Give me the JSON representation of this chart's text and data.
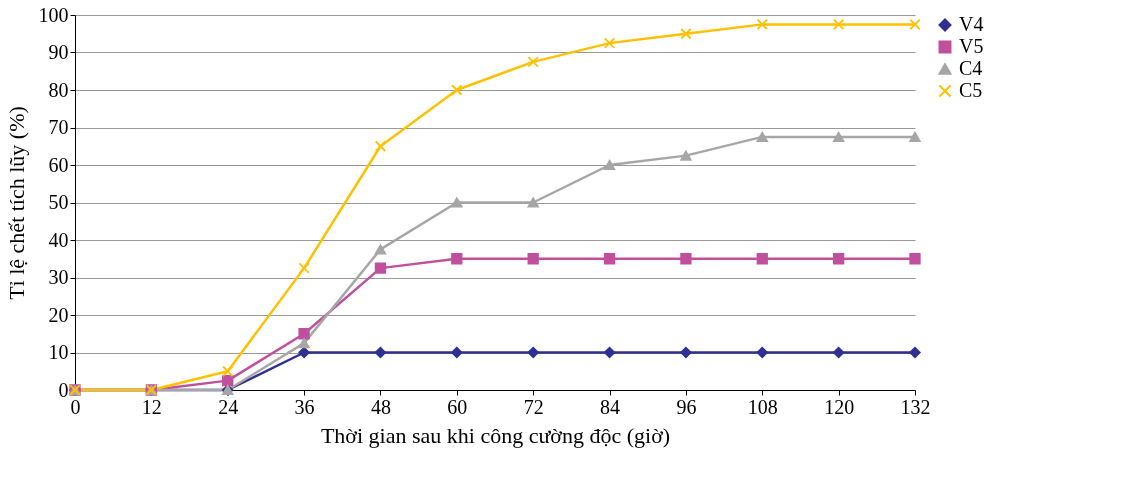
{
  "chart_data": {
    "type": "line",
    "xlabel": "Thời gian sau khi công cường độc (giờ)",
    "ylabel": "Tỉ lệ chết tích lũy (%)",
    "x": [
      0,
      12,
      24,
      36,
      48,
      60,
      72,
      84,
      96,
      108,
      120,
      132
    ],
    "xlim": [
      0,
      132
    ],
    "xticks": [
      0,
      12,
      24,
      36,
      48,
      60,
      72,
      84,
      96,
      108,
      120,
      132
    ],
    "ylim": [
      0,
      100
    ],
    "yticks": [
      0,
      10,
      20,
      30,
      40,
      50,
      60,
      70,
      80,
      90,
      100
    ],
    "grid": "y",
    "legend": "right",
    "line_style": "solid",
    "series": [
      {
        "name": "V4",
        "color": "#2e3192",
        "marker": "diamond",
        "values": [
          0,
          0,
          0,
          10,
          10,
          10,
          10,
          10,
          10,
          10,
          10,
          10
        ]
      },
      {
        "name": "V5",
        "color": "#c0509e",
        "marker": "square",
        "values": [
          0,
          0,
          2.5,
          15,
          32.5,
          35,
          35,
          35,
          35,
          35,
          35,
          35
        ]
      },
      {
        "name": "C4",
        "color": "#a6a6a6",
        "marker": "triangle",
        "values": [
          0,
          0,
          0,
          12.5,
          37.5,
          50,
          50,
          60,
          62.5,
          67.5,
          67.5,
          67.5
        ]
      },
      {
        "name": "C5",
        "color": "#ffc000",
        "marker": "cross",
        "values": [
          0,
          0,
          5,
          32.5,
          65,
          80,
          87.5,
          92.5,
          95,
          97.5,
          97.5,
          97.5
        ]
      }
    ]
  }
}
